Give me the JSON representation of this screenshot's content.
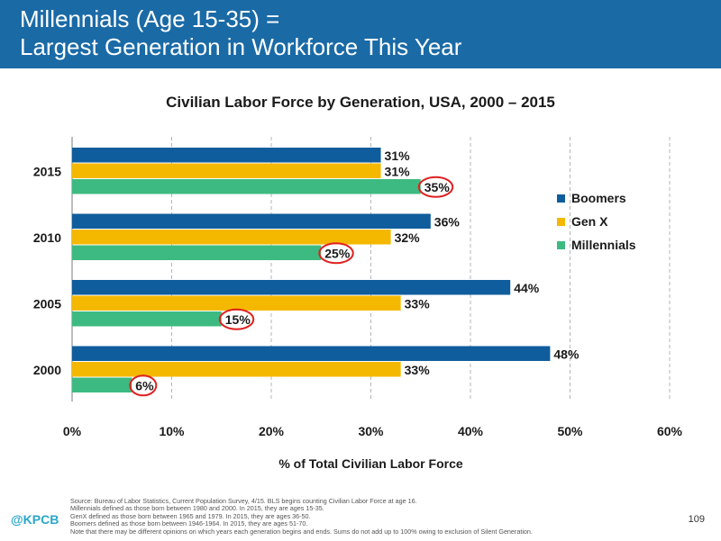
{
  "header": {
    "title_line1": "Millennials (Age 15-35) =",
    "title_line2": "Largest Generation in Workforce This Year"
  },
  "colors": {
    "header_bg": "#1a6aa6",
    "boomers": "#0f5d9c",
    "genx": "#f5b800",
    "millennials": "#3dba81",
    "highlight_circle": "#e02020",
    "brand": "#2aa6c9"
  },
  "chart_data": {
    "type": "bar",
    "orientation": "horizontal",
    "title": "Civilian Labor Force by Generation, USA, 2000 – 2015",
    "xlabel": "% of Total Civilian Labor Force",
    "ylabel": "",
    "categories": [
      "2015",
      "2010",
      "2005",
      "2000"
    ],
    "series": [
      {
        "name": "Boomers",
        "values": [
          31,
          36,
          44,
          48
        ]
      },
      {
        "name": "Gen X",
        "values": [
          31,
          32,
          33,
          33
        ]
      },
      {
        "name": "Millennials",
        "values": [
          35,
          25,
          15,
          6
        ]
      }
    ],
    "xlim": [
      0,
      60
    ],
    "xticks": [
      0,
      10,
      20,
      30,
      40,
      50,
      60
    ],
    "xtick_labels": [
      "0%",
      "10%",
      "20%",
      "30%",
      "40%",
      "50%",
      "60%"
    ],
    "value_suffix": "%",
    "highlighted_series": "Millennials",
    "legend_position": "right",
    "grid": "vertical dashed"
  },
  "footer": {
    "source_lines": [
      "Source: Bureau of Labor Statistics, Current Population Survey, 4/15. BLS begins counting Civilian Labor Force at age 16.",
      "Millennials defined as those born between 1980 and 2000. In 2015, they are ages 15-35.",
      "GenX defined as those born between 1965 and 1979. In 2015, they are ages 36-50.",
      "Boomers defined as those born between 1946-1964. In 2015, they are ages 51-70.",
      "Note that there may be different opinions on which years each generation begins and ends. Sums do not add up to 100% owing to exclusion of Silent Generation."
    ],
    "brand": "@KPCB",
    "page_number": "109"
  }
}
